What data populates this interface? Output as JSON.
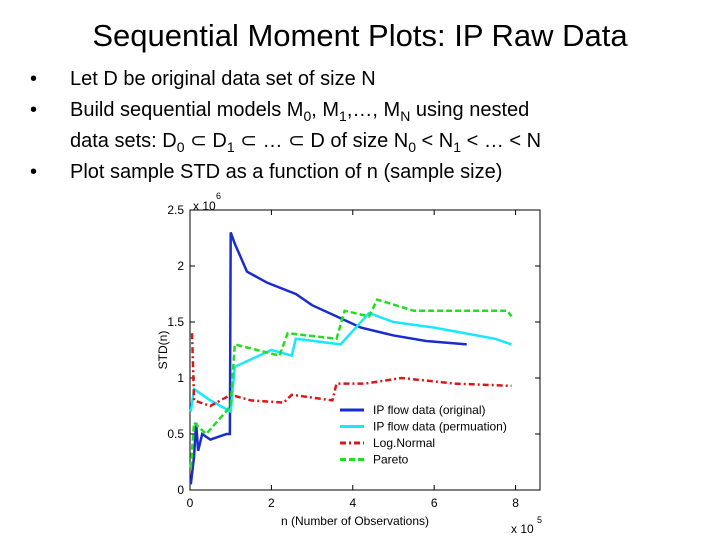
{
  "slide": {
    "title": "Sequential Moment Plots: IP Raw Data",
    "bullets": [
      {
        "bullet": true,
        "segments": [
          {
            "text": "Let D be original data set of size N",
            "sub": false
          }
        ]
      },
      {
        "bullet": true,
        "segments": [
          {
            "text": "Build sequential models M",
            "sub": false
          },
          {
            "text": "0",
            "sub": true
          },
          {
            "text": ", M",
            "sub": false
          },
          {
            "text": "1",
            "sub": true
          },
          {
            "text": ",…, M",
            "sub": false
          },
          {
            "text": "N",
            "sub": true
          },
          {
            "text": " using nested",
            "sub": false
          }
        ]
      },
      {
        "bullet": false,
        "segments": [
          {
            "text": "data sets: D",
            "sub": false
          },
          {
            "text": "0",
            "sub": true
          },
          {
            "text": " ⊂ D",
            "sub": false
          },
          {
            "text": "1",
            "sub": true
          },
          {
            "text": " ⊂ … ⊂ D of size N",
            "sub": false
          },
          {
            "text": "0",
            "sub": true
          },
          {
            "text": " < N",
            "sub": false
          },
          {
            "text": "1",
            "sub": true
          },
          {
            "text": " < … < N",
            "sub": false
          }
        ]
      },
      {
        "bullet": true,
        "segments": [
          {
            "text": "Plot sample STD as a function of n (sample size)",
            "sub": false
          }
        ]
      }
    ]
  },
  "chart_data": {
    "type": "line",
    "x_label": "n (Number of Observations)",
    "y_label": "STD(n)",
    "x_multiplier": {
      "base": "x 10",
      "exponent": "5"
    },
    "y_multiplier": {
      "base": "x 10",
      "exponent": "6"
    },
    "xlim": [
      0,
      8.6
    ],
    "ylim": [
      0,
      2.5
    ],
    "xticks": [
      0,
      2,
      4,
      6,
      8
    ],
    "yticks": [
      0,
      0.5,
      1,
      1.5,
      2,
      2.5
    ],
    "legend": "upper-right-inside-bottom",
    "series": [
      {
        "name": "IP flow data (original)",
        "color": "#1a2ccc",
        "dash": "",
        "x": [
          0.02,
          0.1,
          0.15,
          0.2,
          0.3,
          0.5,
          0.9,
          0.98,
          1.0,
          1.1,
          1.4,
          1.9,
          2.6,
          3.0,
          3.6,
          4.2,
          5.0,
          5.8,
          6.8
        ],
        "values": [
          0.05,
          0.3,
          0.6,
          0.35,
          0.5,
          0.45,
          0.5,
          0.5,
          2.3,
          2.2,
          1.95,
          1.85,
          1.75,
          1.65,
          1.55,
          1.45,
          1.38,
          1.33,
          1.3
        ]
      },
      {
        "name": "IP flow data (permuation)",
        "color": "#19e6ff",
        "dash": "",
        "x": [
          0.02,
          0.1,
          0.5,
          1.0,
          1.1,
          2.0,
          2.5,
          2.6,
          3.7,
          4.4,
          5.0,
          6.0,
          7.5,
          7.9
        ],
        "values": [
          0.7,
          0.9,
          0.8,
          0.7,
          1.1,
          1.25,
          1.2,
          1.35,
          1.3,
          1.58,
          1.5,
          1.45,
          1.35,
          1.3
        ]
      },
      {
        "name": "Log.Normal",
        "color": "#d81818",
        "dash": "6 3 2 3",
        "x": [
          0.05,
          0.1,
          0.5,
          1.0,
          1.5,
          2.3,
          2.5,
          3.5,
          3.6,
          4.3,
          5.2,
          6.5,
          7.9
        ],
        "values": [
          1.4,
          0.8,
          0.75,
          0.85,
          0.8,
          0.78,
          0.85,
          0.8,
          0.95,
          0.95,
          1.0,
          0.95,
          0.93
        ]
      },
      {
        "name": "Pareto",
        "color": "#22dd22",
        "dash": "6 3",
        "x": [
          0.02,
          0.1,
          0.4,
          1.0,
          1.1,
          2.2,
          2.4,
          3.6,
          3.8,
          4.4,
          4.6,
          5.5,
          7.8,
          7.9
        ],
        "values": [
          0.2,
          0.6,
          0.5,
          0.75,
          1.3,
          1.2,
          1.4,
          1.35,
          1.6,
          1.55,
          1.7,
          1.6,
          1.6,
          1.55
        ]
      }
    ]
  }
}
